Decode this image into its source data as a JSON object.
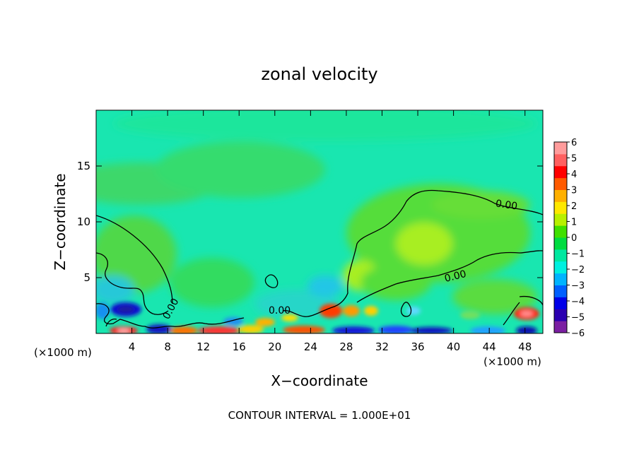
{
  "chart_data": {
    "type": "heatmap",
    "title": "zonal velocity",
    "xlabel": "X−coordinate",
    "ylabel": "Z−coordinate",
    "x_unit_left": "(×1000 m)",
    "x_unit_right": "(×1000 m)",
    "footer": "CONTOUR INTERVAL = 1.000E+01",
    "xlim": [
      0,
      50
    ],
    "ylim": [
      0,
      20
    ],
    "x_ticks": [
      4,
      8,
      12,
      16,
      20,
      24,
      28,
      32,
      36,
      40,
      44,
      48
    ],
    "x_tick_labels": [
      "4",
      "8",
      "12",
      "16",
      "20",
      "24",
      "28",
      "32",
      "36",
      "40",
      "44",
      "48"
    ],
    "y_ticks": [
      5,
      10,
      15
    ],
    "y_tick_labels": [
      "5",
      "10",
      "15"
    ],
    "colorbar": {
      "min": -6,
      "max": 6,
      "tick_labels": [
        "6",
        "5",
        "4",
        "3",
        "2",
        "1",
        "0",
        "−1",
        "−2",
        "−3",
        "−4",
        "−5",
        "−6"
      ],
      "colors": [
        "#7b1fa2",
        "#2b00b0",
        "#0000e8",
        "#0060ff",
        "#00b4ff",
        "#00f0e0",
        "#00e8a0",
        "#00dc40",
        "#40e000",
        "#b8f000",
        "#ffe800",
        "#ffb000",
        "#ff5a00",
        "#ff0000",
        "#ff6060",
        "#ff9c9c"
      ]
    },
    "contour_labels": [
      "0.00",
      "0.00",
      "0.00",
      "0.00"
    ],
    "grid": false,
    "legend": "colorbar right"
  }
}
